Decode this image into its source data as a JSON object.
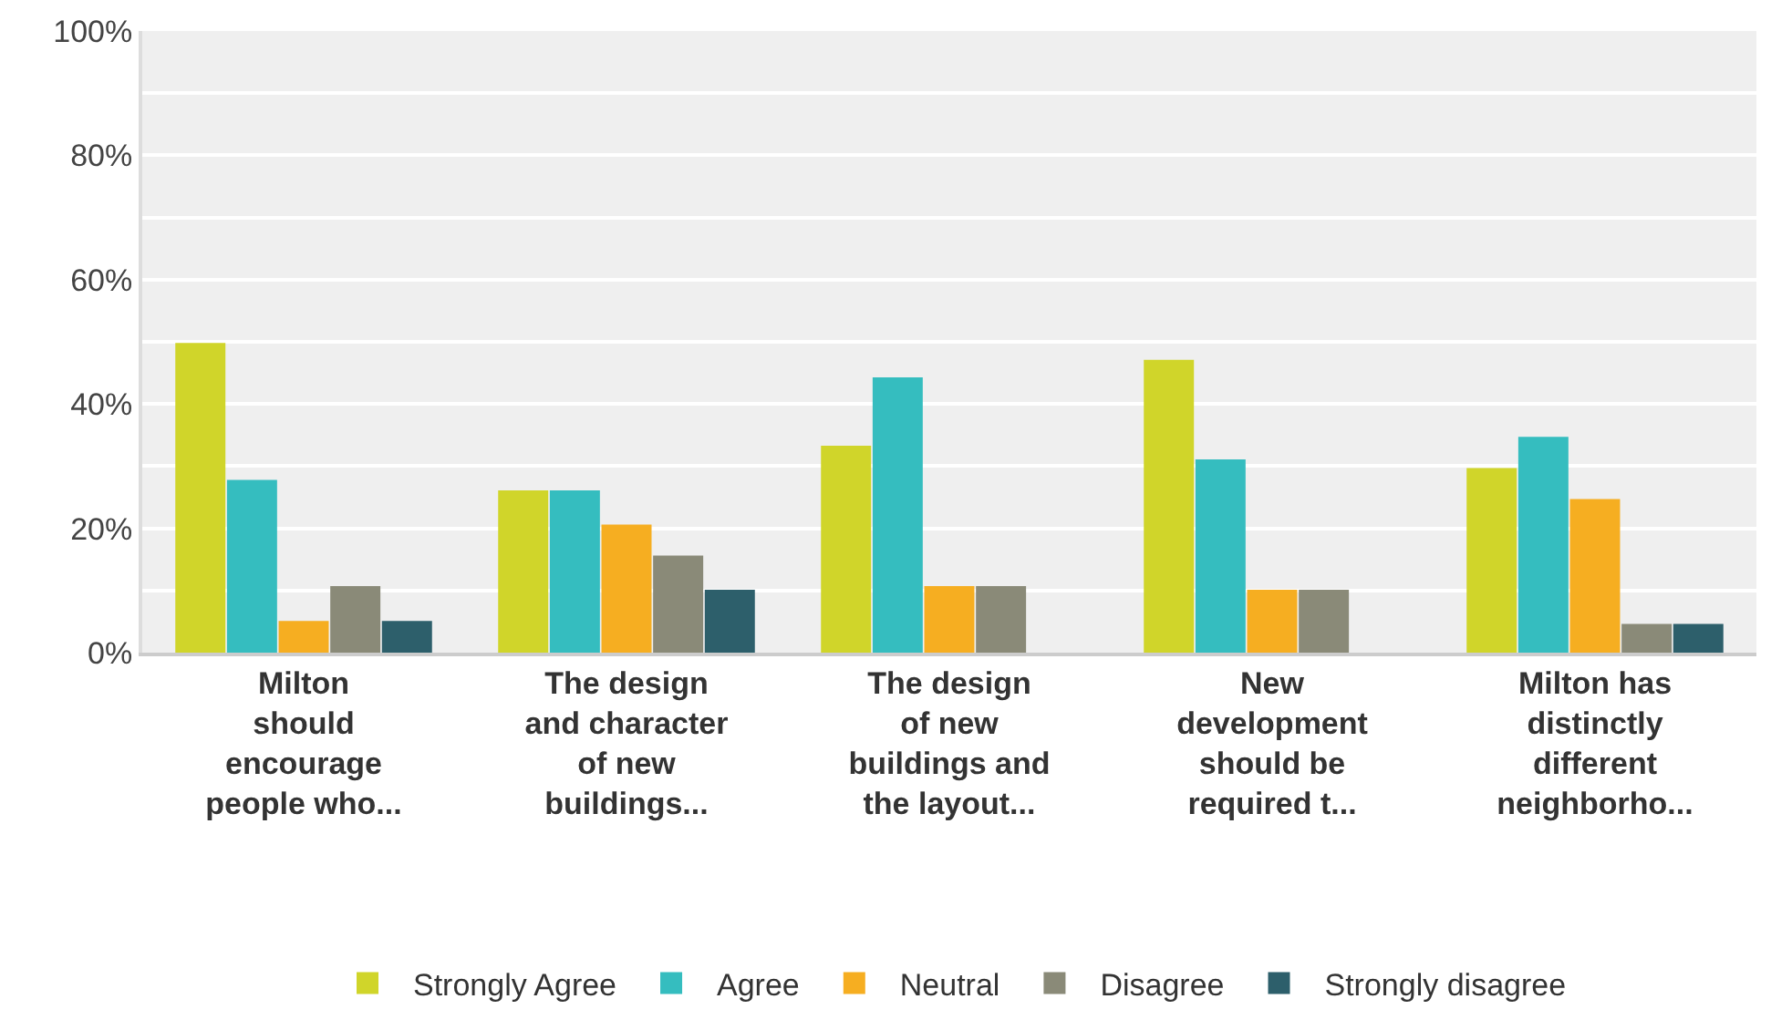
{
  "chart_data": {
    "type": "bar",
    "categories": [
      "Milton\nshould\nencourage\npeople who...",
      "The design\nand character\nof new\nbuildings...",
      "The design\nof new\nbuildings and\nthe layout...",
      "New\ndevelopment\nshould be\nrequired t...",
      "Milton has\ndistinctly\ndifferent\nneighborho..."
    ],
    "series": [
      {
        "name": "Strongly Agree",
        "color": "#d0d52a",
        "values": [
          49.8,
          26.1,
          33.3,
          47.1,
          29.7
        ]
      },
      {
        "name": "Agree",
        "color": "#35bdbf",
        "values": [
          27.8,
          26.1,
          44.3,
          31.1,
          34.7
        ]
      },
      {
        "name": "Neutral",
        "color": "#f6ae21",
        "values": [
          5.1,
          20.6,
          10.7,
          10.1,
          24.7
        ]
      },
      {
        "name": "Disagree",
        "color": "#8a8a78",
        "values": [
          10.7,
          15.6,
          10.7,
          10.1,
          4.6
        ]
      },
      {
        "name": "Strongly disagree",
        "color": "#2d5f6b",
        "values": [
          5.1,
          10.1,
          0,
          0,
          4.6
        ]
      }
    ],
    "ylim": [
      0,
      100
    ],
    "yticks": [
      {
        "value": 0,
        "label": "0%"
      },
      {
        "value": 10,
        "label": null
      },
      {
        "value": 20,
        "label": "20%"
      },
      {
        "value": 30,
        "label": null
      },
      {
        "value": 40,
        "label": "40%"
      },
      {
        "value": 50,
        "label": null
      },
      {
        "value": 60,
        "label": "60%"
      },
      {
        "value": 70,
        "label": null
      },
      {
        "value": 80,
        "label": "80%"
      },
      {
        "value": 90,
        "label": null
      },
      {
        "value": 100,
        "label": "100%"
      }
    ],
    "grid": "y",
    "legend": "bottom"
  }
}
